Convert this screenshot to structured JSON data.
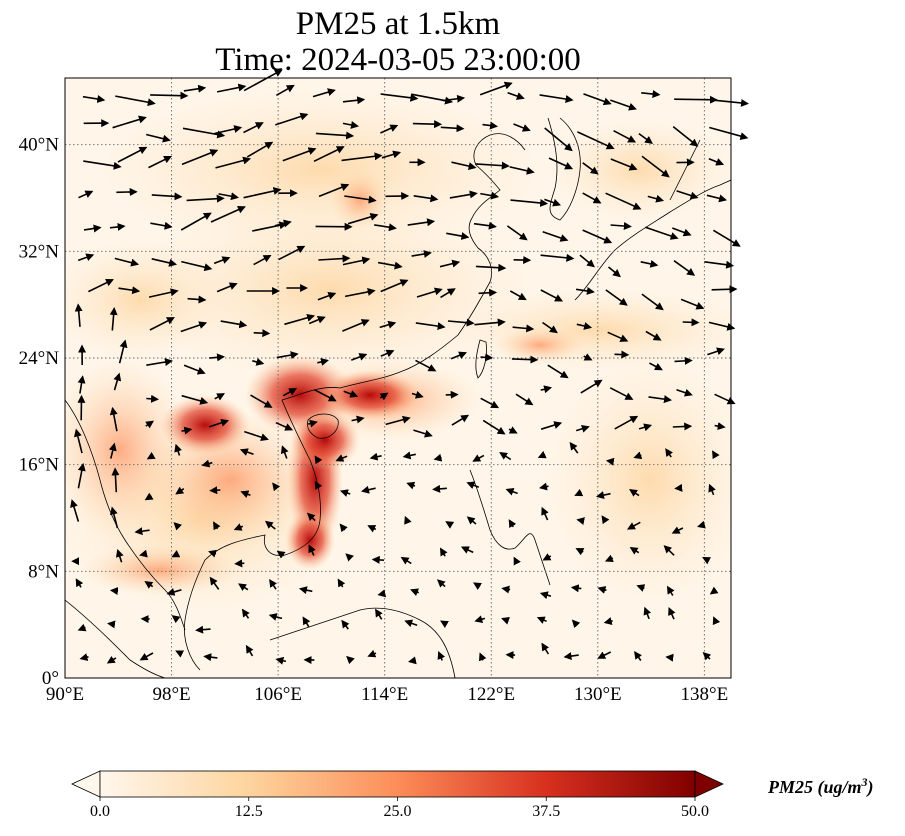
{
  "title": {
    "line1": "PM25 at 1.5km",
    "line2": "Time: 2024-03-05 23:00:00"
  },
  "map": {
    "extent": {
      "lon": [
        90,
        140
      ],
      "lat": [
        0,
        45
      ]
    },
    "lat_ticks": [
      {
        "value": 0,
        "label": "0°"
      },
      {
        "value": 8,
        "label": "8°N"
      },
      {
        "value": 16,
        "label": "16°N"
      },
      {
        "value": 24,
        "label": "24°N"
      },
      {
        "value": 32,
        "label": "32°N"
      },
      {
        "value": 40,
        "label": "40°N"
      }
    ],
    "lon_ticks": [
      {
        "value": 90,
        "label": "90°E"
      },
      {
        "value": 98,
        "label": "98°E"
      },
      {
        "value": 106,
        "label": "106°E"
      },
      {
        "value": 114,
        "label": "114°E"
      },
      {
        "value": 122,
        "label": "122°E"
      },
      {
        "value": 130,
        "label": "130°E"
      },
      {
        "value": 138,
        "label": "138°E"
      }
    ],
    "gridlines": true,
    "colormap": "OrRd",
    "colors": {
      "low": "#fff7ec",
      "mid": "#fc8d59",
      "high": "#7f0000",
      "wind_arrow": "#000000",
      "coastline": "#000000"
    }
  },
  "colorbar": {
    "label_main": "PM25 (ug/m",
    "label_sup": "3",
    "label_end": ")",
    "range": [
      0,
      50
    ],
    "extend": "both",
    "ticks": [
      {
        "value": 0,
        "label": "0.0"
      },
      {
        "value": 12.5,
        "label": "12.5"
      },
      {
        "value": 25,
        "label": "25.0"
      },
      {
        "value": 37.5,
        "label": "37.5"
      },
      {
        "value": 50,
        "label": "50.0"
      }
    ]
  }
}
